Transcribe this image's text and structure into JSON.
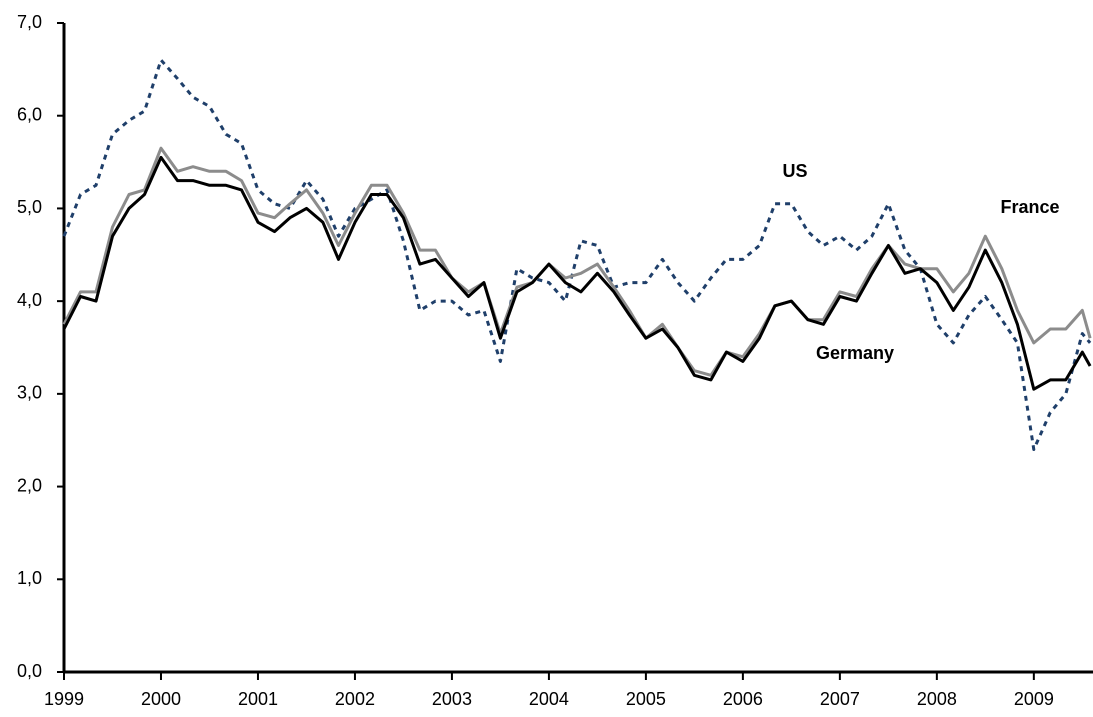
{
  "chart_data": {
    "type": "line",
    "x": [
      1999,
      1999.17,
      1999.33,
      1999.5,
      1999.67,
      1999.83,
      2000,
      2000.17,
      2000.33,
      2000.5,
      2000.67,
      2000.83,
      2001,
      2001.17,
      2001.33,
      2001.5,
      2001.67,
      2001.83,
      2002,
      2002.17,
      2002.33,
      2002.5,
      2002.67,
      2002.83,
      2003,
      2003.17,
      2003.33,
      2003.5,
      2003.67,
      2003.83,
      2004,
      2004.17,
      2004.33,
      2004.5,
      2004.67,
      2004.83,
      2005,
      2005.17,
      2005.33,
      2005.5,
      2005.67,
      2005.83,
      2006,
      2006.17,
      2006.33,
      2006.5,
      2006.67,
      2006.83,
      2007,
      2007.17,
      2007.33,
      2007.5,
      2007.67,
      2007.83,
      2008,
      2008.17,
      2008.33,
      2008.5,
      2008.67,
      2008.83,
      2009,
      2009.17,
      2009.33,
      2009.5,
      2009.58
    ],
    "series": [
      {
        "name": "US",
        "color": "#1f3f6a",
        "dash": true,
        "values": [
          4.7,
          5.15,
          5.25,
          5.8,
          5.95,
          6.05,
          6.6,
          6.4,
          6.2,
          6.1,
          5.8,
          5.7,
          5.2,
          5.05,
          5.0,
          5.3,
          5.1,
          4.7,
          5.0,
          5.1,
          5.2,
          4.65,
          3.9,
          4.0,
          4.0,
          3.85,
          3.9,
          3.35,
          4.35,
          4.25,
          4.2,
          4.0,
          4.65,
          4.6,
          4.15,
          4.2,
          4.2,
          4.45,
          4.2,
          4.0,
          4.25,
          4.45,
          4.45,
          4.6,
          5.05,
          5.05,
          4.75,
          4.6,
          4.7,
          4.55,
          4.7,
          5.05,
          4.55,
          4.35,
          3.75,
          3.55,
          3.85,
          4.05,
          3.8,
          3.55,
          2.4,
          2.8,
          3.0,
          3.65,
          3.55
        ]
      },
      {
        "name": "France",
        "color": "#8c8c8c",
        "dash": false,
        "values": [
          3.75,
          4.1,
          4.1,
          4.8,
          5.15,
          5.2,
          5.65,
          5.4,
          5.45,
          5.4,
          5.4,
          5.3,
          4.95,
          4.9,
          5.05,
          5.2,
          4.95,
          4.6,
          4.95,
          5.25,
          5.25,
          4.95,
          4.55,
          4.55,
          4.25,
          4.1,
          4.2,
          3.65,
          4.15,
          4.2,
          4.4,
          4.25,
          4.3,
          4.4,
          4.15,
          3.9,
          3.6,
          3.75,
          3.5,
          3.25,
          3.2,
          3.45,
          3.4,
          3.65,
          3.95,
          4.0,
          3.8,
          3.8,
          4.1,
          4.05,
          4.35,
          4.6,
          4.4,
          4.35,
          4.35,
          4.1,
          4.3,
          4.7,
          4.35,
          3.9,
          3.55,
          3.7,
          3.7,
          3.9,
          3.6
        ]
      },
      {
        "name": "Germany",
        "color": "#000000",
        "dash": false,
        "values": [
          3.7,
          4.05,
          4.0,
          4.7,
          5.0,
          5.15,
          5.55,
          5.3,
          5.3,
          5.25,
          5.25,
          5.2,
          4.85,
          4.75,
          4.9,
          5.0,
          4.85,
          4.45,
          4.85,
          5.15,
          5.15,
          4.9,
          4.4,
          4.45,
          4.25,
          4.05,
          4.2,
          3.6,
          4.1,
          4.2,
          4.4,
          4.2,
          4.1,
          4.3,
          4.1,
          3.85,
          3.6,
          3.7,
          3.5,
          3.2,
          3.15,
          3.45,
          3.35,
          3.6,
          3.95,
          4.0,
          3.8,
          3.75,
          4.05,
          4.0,
          4.3,
          4.6,
          4.3,
          4.35,
          4.2,
          3.9,
          4.15,
          4.55,
          4.2,
          3.75,
          3.05,
          3.15,
          3.15,
          3.45,
          3.3
        ]
      }
    ],
    "xlim": [
      1999,
      2009.61
    ],
    "xticks": [
      1999,
      2000,
      2001,
      2002,
      2003,
      2004,
      2005,
      2006,
      2007,
      2008,
      2009
    ],
    "ylim": [
      0,
      7
    ],
    "yticks": [
      {
        "value": 0,
        "label": "0,0"
      },
      {
        "value": 1,
        "label": "1,0"
      },
      {
        "value": 2,
        "label": "2,0"
      },
      {
        "value": 3,
        "label": "3,0"
      },
      {
        "value": 4,
        "label": "4,0"
      },
      {
        "value": 5,
        "label": "5,0"
      },
      {
        "value": 6,
        "label": "6,0"
      },
      {
        "value": 7,
        "label": "7,0"
      }
    ],
    "grid": false
  }
}
